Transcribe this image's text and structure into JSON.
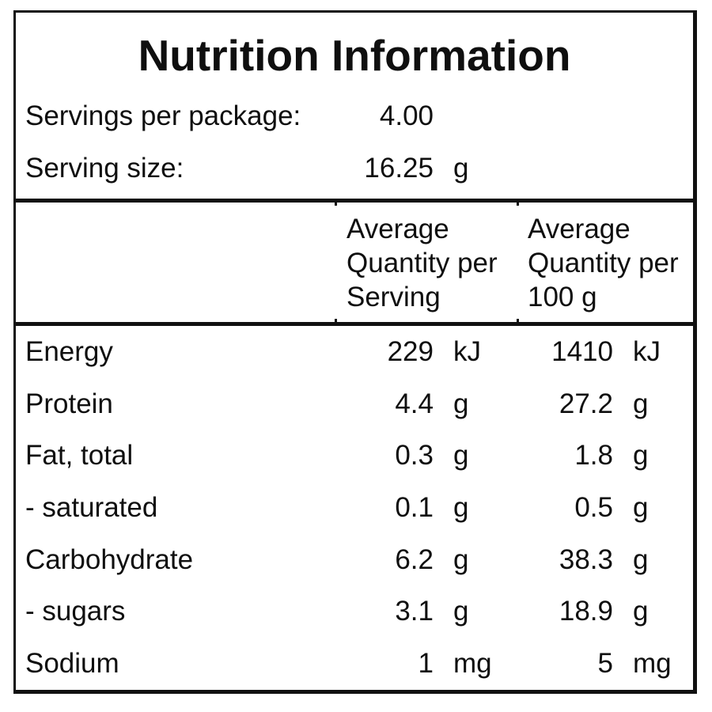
{
  "label": {
    "title": "Nutrition Information",
    "servings_per_package": {
      "label": "Servings per package:",
      "value": "4.00"
    },
    "serving_size": {
      "label": "Serving size:",
      "value": "16.25",
      "unit": "g"
    },
    "column_headers": {
      "per_serving": "Average Quantity per Serving",
      "per_100g": "Average Quantity per 100 g"
    },
    "rows": [
      {
        "nutrient": "Energy",
        "per_serving": "229",
        "per_serving_unit": "kJ",
        "per_100g": "1410",
        "per_100g_unit": "kJ"
      },
      {
        "nutrient": "Protein",
        "per_serving": "4.4",
        "per_serving_unit": "g",
        "per_100g": "27.2",
        "per_100g_unit": "g"
      },
      {
        "nutrient": "Fat, total",
        "per_serving": "0.3",
        "per_serving_unit": "g",
        "per_100g": "1.8",
        "per_100g_unit": "g"
      },
      {
        "nutrient": "- saturated",
        "per_serving": "0.1",
        "per_serving_unit": "g",
        "per_100g": "0.5",
        "per_100g_unit": "g"
      },
      {
        "nutrient": "Carbohydrate",
        "per_serving": "6.2",
        "per_serving_unit": "g",
        "per_100g": "38.3",
        "per_100g_unit": "g"
      },
      {
        "nutrient": "- sugars",
        "per_serving": "3.1",
        "per_serving_unit": "g",
        "per_100g": "18.9",
        "per_100g_unit": "g"
      },
      {
        "nutrient": "Sodium",
        "per_serving": "1",
        "per_serving_unit": "mg",
        "per_100g": "5",
        "per_100g_unit": "mg"
      }
    ],
    "colors": {
      "text": "#0f0f0f",
      "border": "#111111",
      "background": "#ffffff"
    }
  }
}
